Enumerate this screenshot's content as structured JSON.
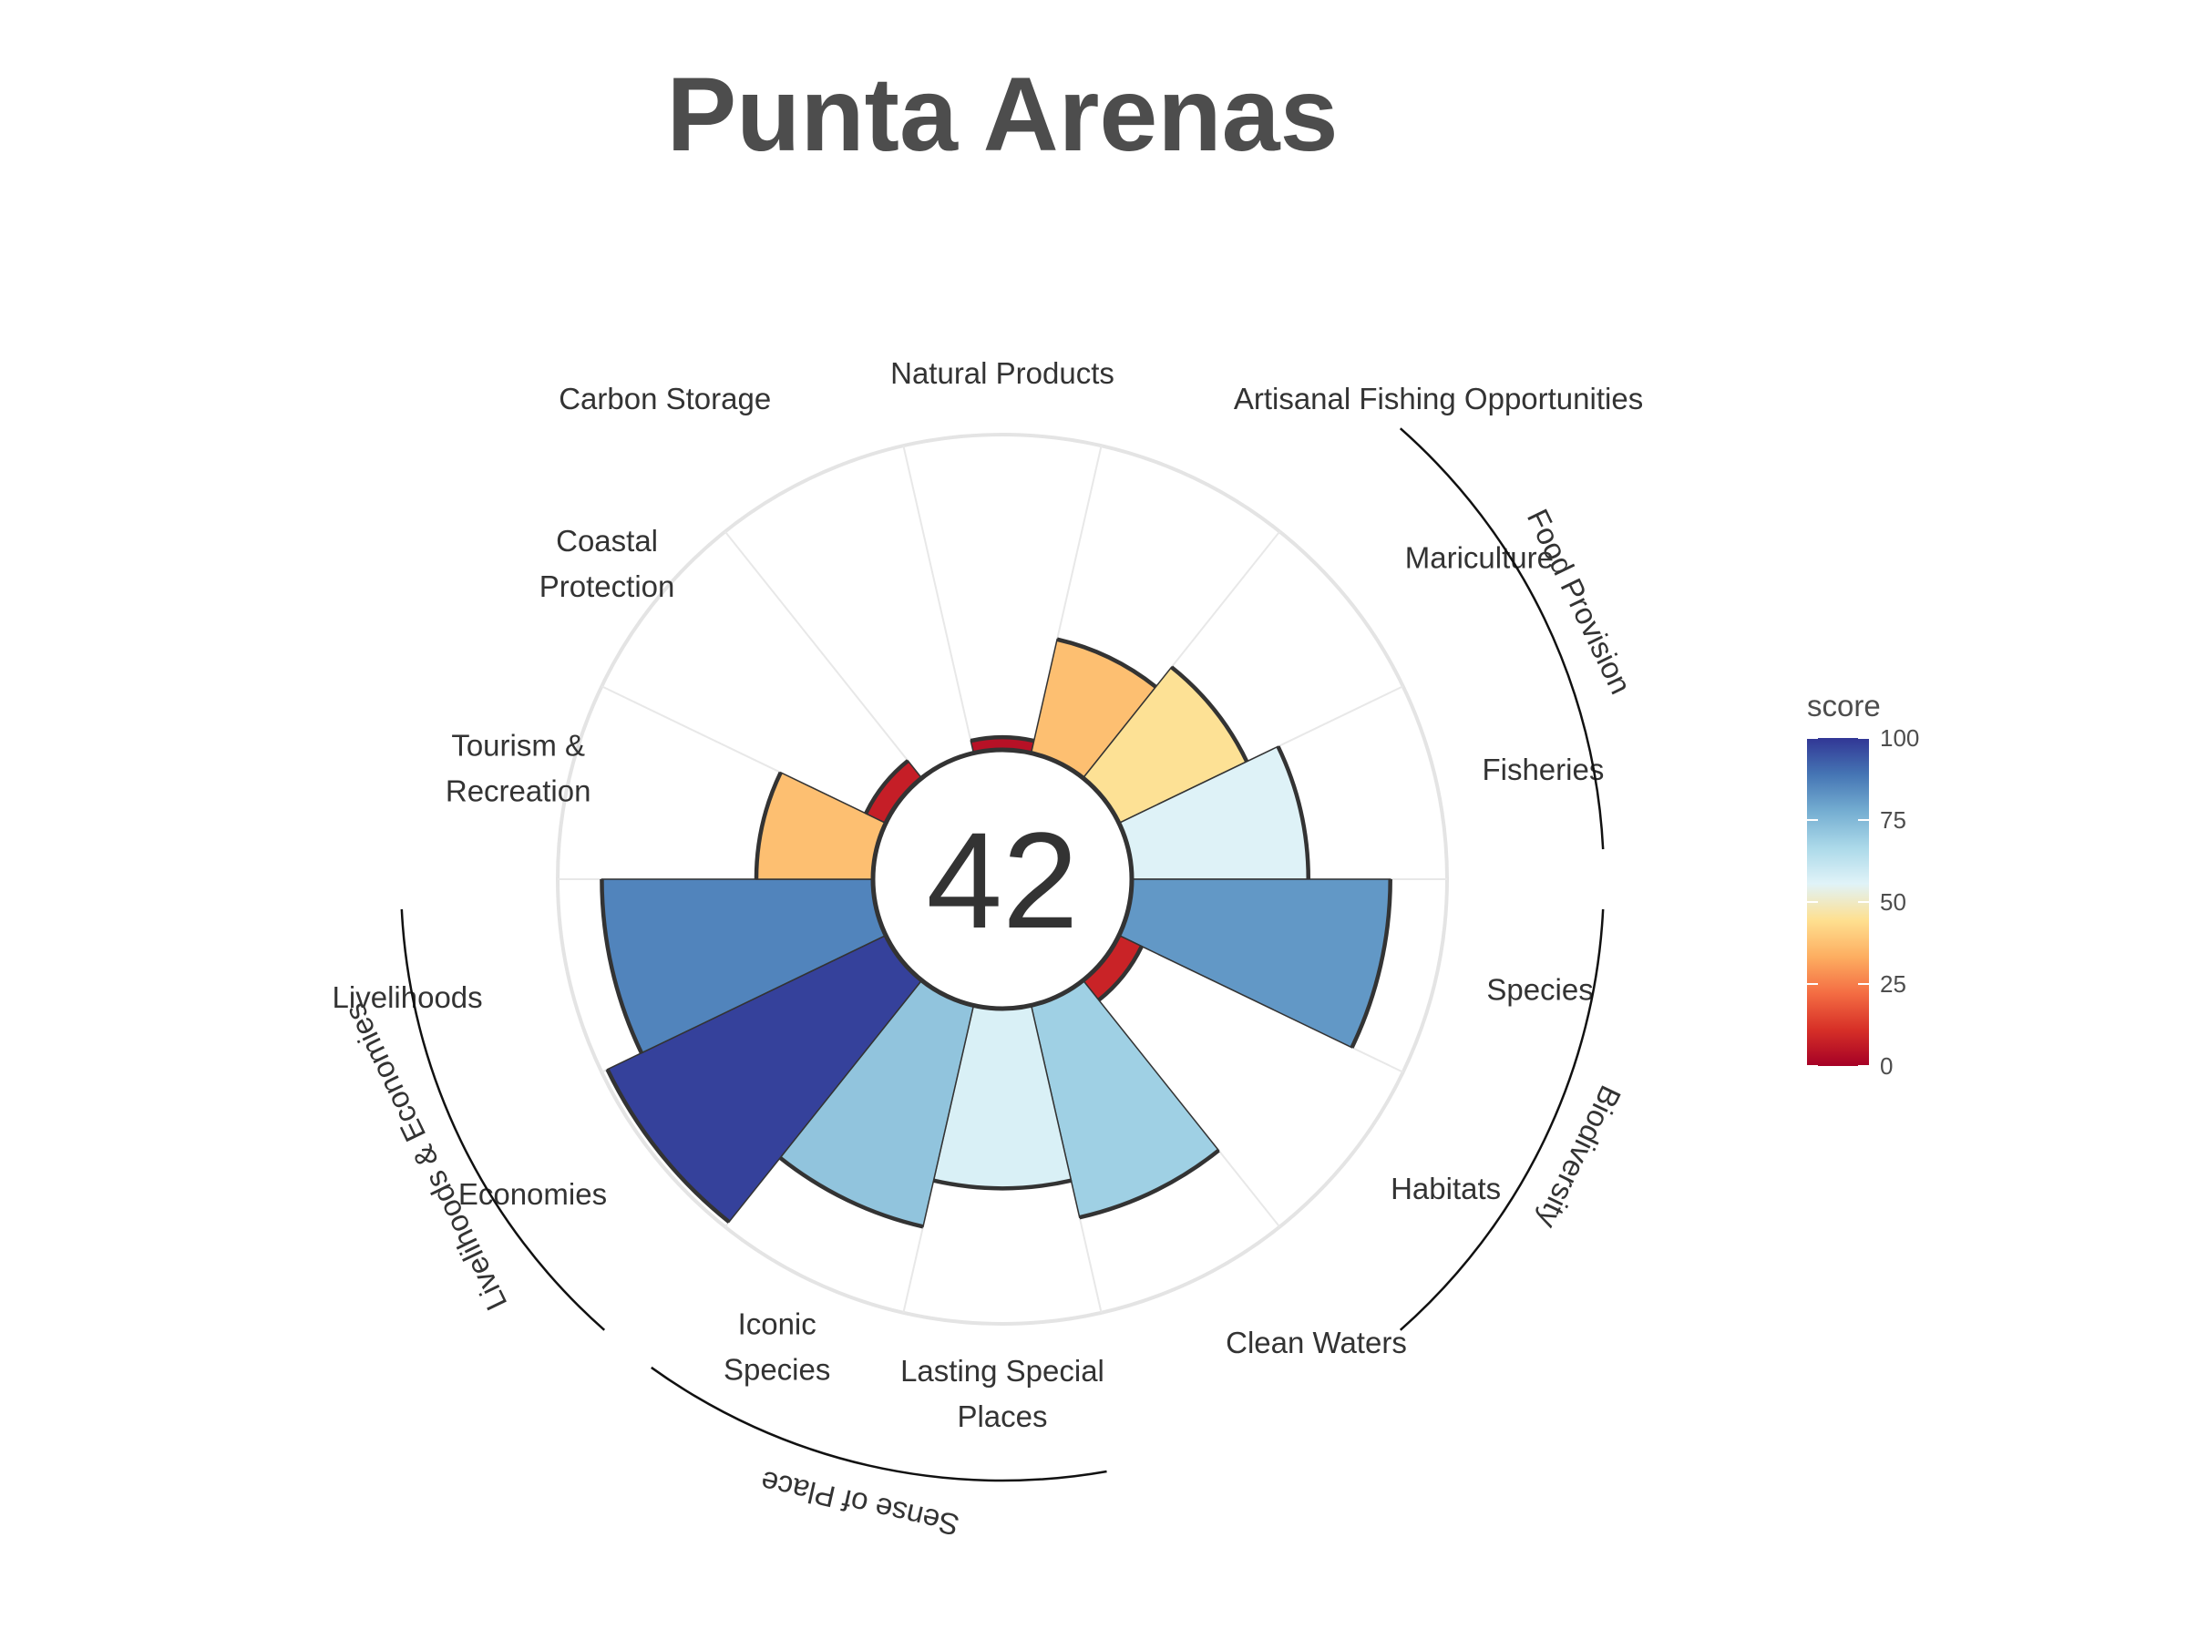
{
  "chart_data": {
    "type": "bar",
    "subtype": "polar",
    "title": "Punta Arenas",
    "center_value": "42",
    "categories": [
      "Natural Products",
      "Artisanal Fishing Opportunities",
      "Mariculture",
      "Fisheries",
      "Species",
      "Habitats",
      "Clean Waters",
      "Lasting Special Places",
      "Iconic Species",
      "Economies",
      "Livelihoods",
      "Tourism & Recreation",
      "Coastal Protection",
      "Carbon Storage"
    ],
    "values": [
      4,
      37,
      45,
      56,
      82,
      8,
      69,
      57,
      72,
      98,
      86,
      37,
      7,
      0
    ],
    "value_max": 100,
    "groups": [
      {
        "label": "Food Provision",
        "members": [
          "Mariculture",
          "Fisheries"
        ]
      },
      {
        "label": "Biodiversity",
        "members": [
          "Species",
          "Habitats"
        ]
      },
      {
        "label": "Sense of Place",
        "members": [
          "Lasting Special Places",
          "Iconic Species"
        ]
      },
      {
        "label": "Livelihoods & Economies",
        "members": [
          "Economies",
          "Livelihoods"
        ]
      }
    ],
    "legend": {
      "title": "score",
      "ticks": [
        0,
        25,
        50,
        75,
        100
      ],
      "position": "right",
      "colors": [
        "#A50026",
        "#D73027",
        "#F46D43",
        "#FDAE61",
        "#FEE090",
        "#E0F3F8",
        "#ABD9E9",
        "#74ADD1",
        "#4575B4",
        "#313695"
      ]
    },
    "grid": true
  }
}
